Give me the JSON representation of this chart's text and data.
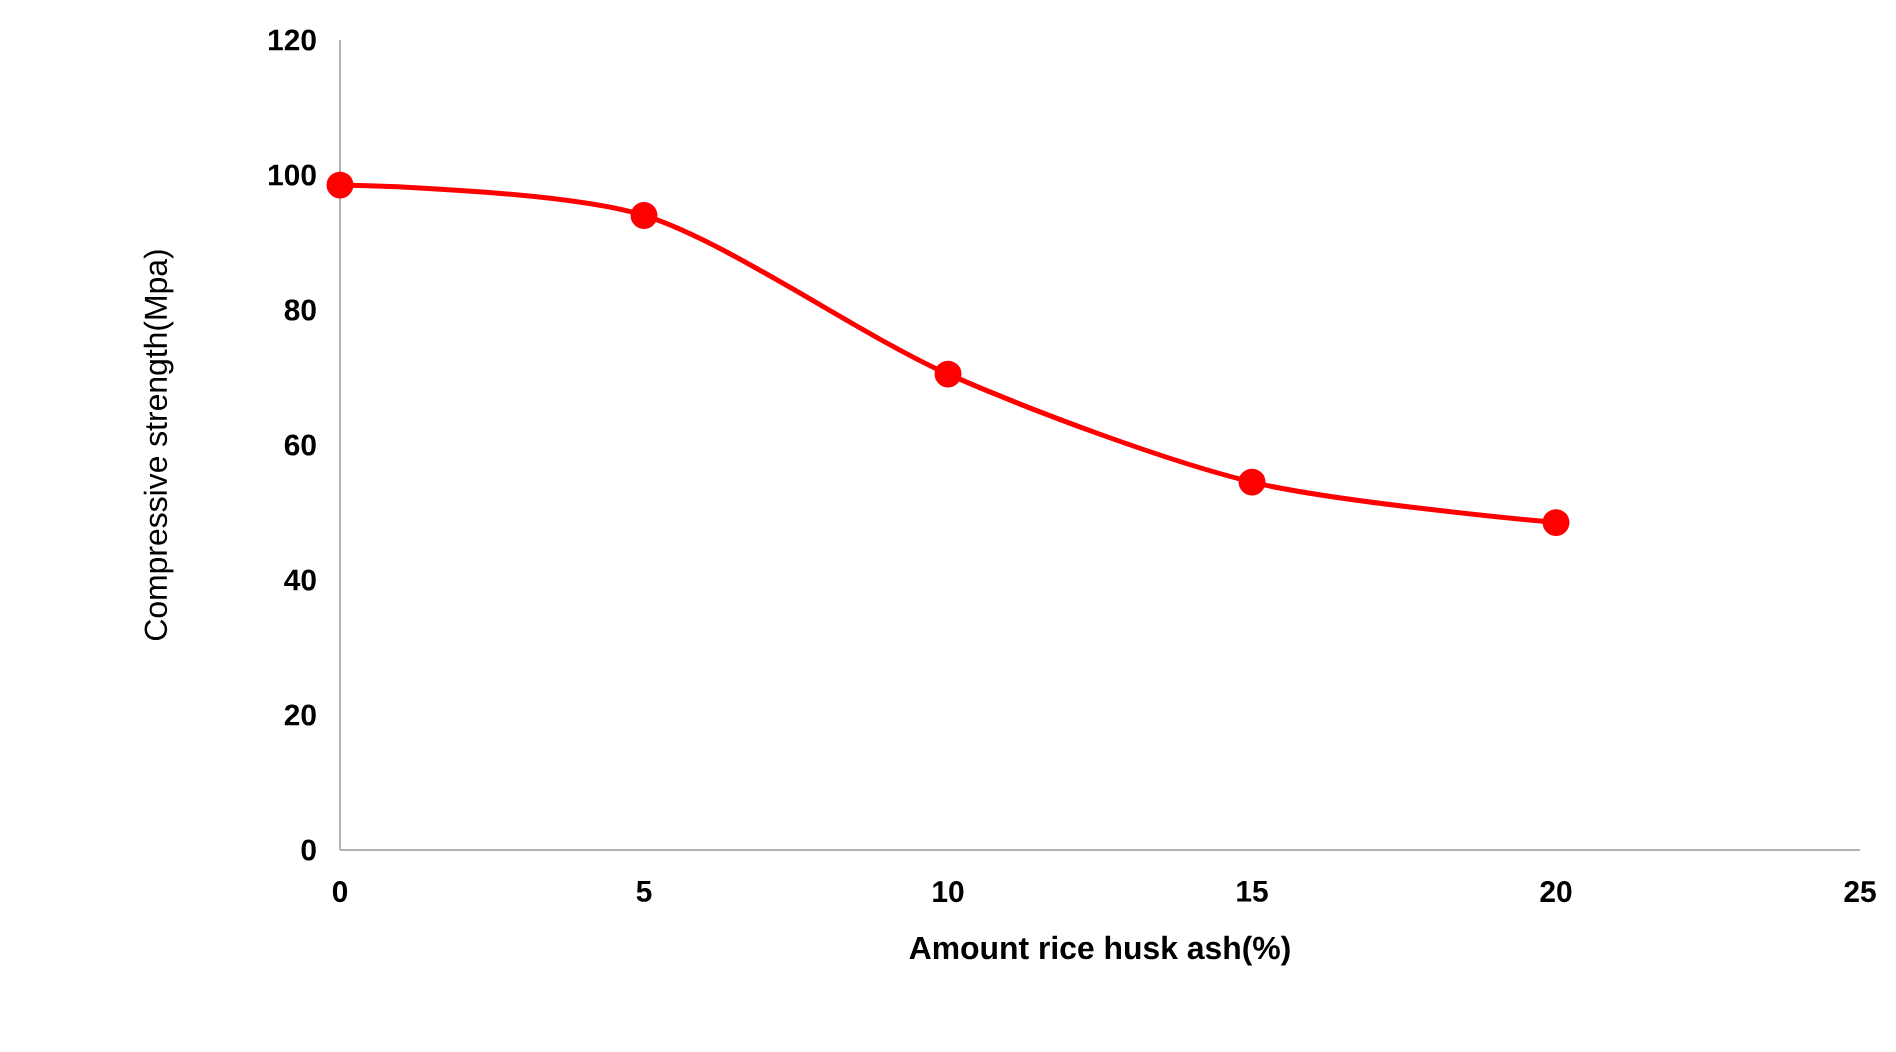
{
  "chart_data": {
    "type": "line",
    "xlabel": "Amount rice husk ash(%)",
    "ylabel": "Compressive strength(Mpa)",
    "x": [
      0,
      5,
      10,
      15,
      20
    ],
    "series": [
      {
        "color": "#ff0000",
        "values": [
          98.5,
          94,
          70.5,
          54.5,
          48.5
        ]
      }
    ],
    "xlim": [
      0,
      25
    ],
    "xticks": [
      0,
      5,
      10,
      15,
      20,
      25
    ],
    "ylim": [
      0,
      120
    ],
    "yticks": [
      0,
      20,
      40,
      60,
      80,
      100,
      120
    ],
    "marker": "circle",
    "line_style": "solid",
    "grid": false
  }
}
